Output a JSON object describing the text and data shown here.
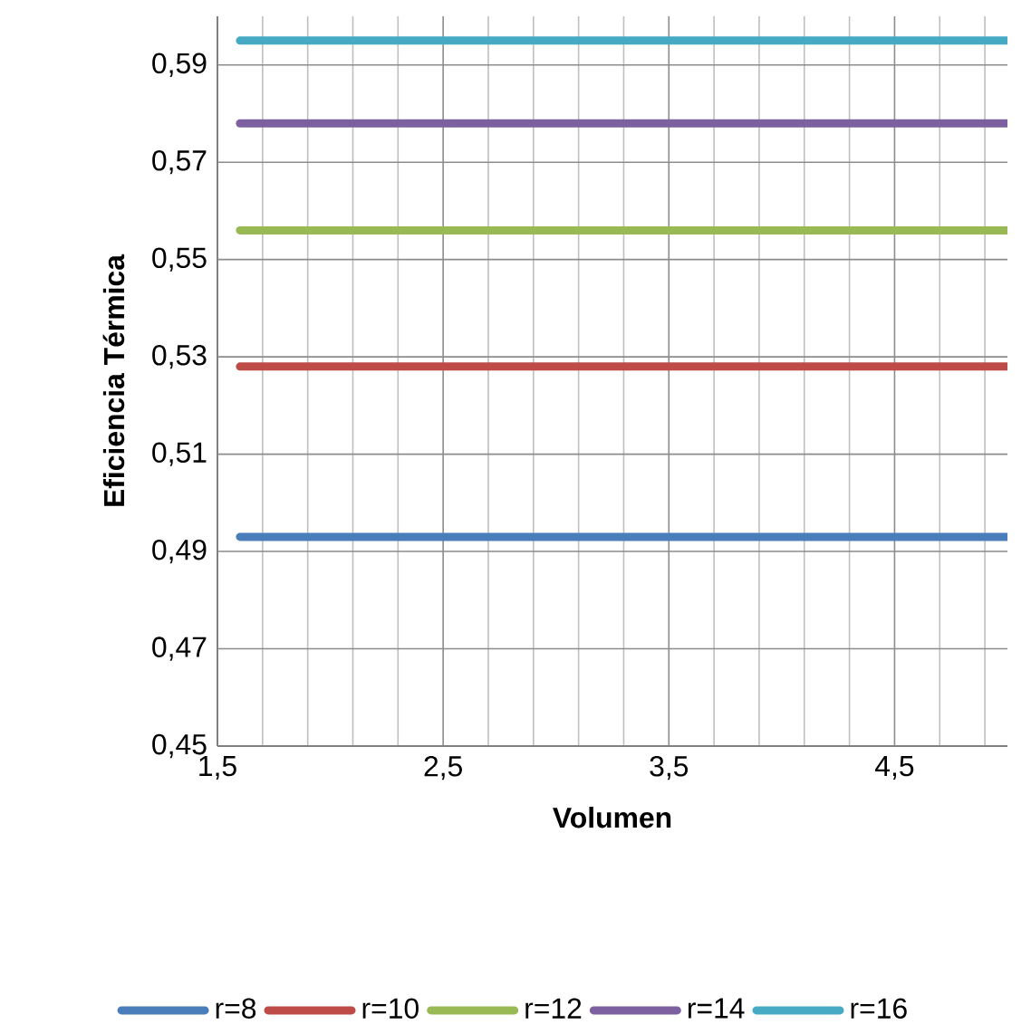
{
  "chart_data": {
    "type": "line",
    "xlabel": "Volumen",
    "ylabel": "Eficiencia Térmica",
    "xlim": [
      1.5,
      5.0
    ],
    "ylim": [
      0.45,
      0.6
    ],
    "xticks": [
      {
        "value": 1.5,
        "label": "1,5"
      },
      {
        "value": 1.7,
        "label": null
      },
      {
        "value": 1.9,
        "label": null
      },
      {
        "value": 2.1,
        "label": null
      },
      {
        "value": 2.3,
        "label": null
      },
      {
        "value": 2.5,
        "label": "2,5"
      },
      {
        "value": 2.7,
        "label": null
      },
      {
        "value": 2.9,
        "label": null
      },
      {
        "value": 3.1,
        "label": null
      },
      {
        "value": 3.3,
        "label": null
      },
      {
        "value": 3.5,
        "label": "3,5"
      },
      {
        "value": 3.7,
        "label": null
      },
      {
        "value": 3.9,
        "label": null
      },
      {
        "value": 4.1,
        "label": null
      },
      {
        "value": 4.3,
        "label": null
      },
      {
        "value": 4.5,
        "label": "4,5"
      },
      {
        "value": 4.7,
        "label": null
      },
      {
        "value": 4.9,
        "label": null
      }
    ],
    "yticks": [
      {
        "value": 0.45,
        "label": "0,45"
      },
      {
        "value": 0.47,
        "label": "0,47"
      },
      {
        "value": 0.49,
        "label": "0,49"
      },
      {
        "value": 0.51,
        "label": "0,51"
      },
      {
        "value": 0.53,
        "label": "0,53"
      },
      {
        "value": 0.55,
        "label": "0,55"
      },
      {
        "value": 0.57,
        "label": "0,57"
      },
      {
        "value": 0.59,
        "label": "0,59"
      }
    ],
    "x": [
      1.6,
      5.0
    ],
    "series": [
      {
        "name": "r=8",
        "color": "#4a7ebb",
        "values": [
          0.493,
          0.493
        ]
      },
      {
        "name": "r=10",
        "color": "#be4b48",
        "values": [
          0.528,
          0.528
        ]
      },
      {
        "name": "r=12",
        "color": "#98b954",
        "values": [
          0.556,
          0.556
        ]
      },
      {
        "name": "r=14",
        "color": "#7d60a0",
        "values": [
          0.578,
          0.578
        ]
      },
      {
        "name": "r=16",
        "color": "#46aac5",
        "values": [
          0.595,
          0.595
        ]
      }
    ],
    "grid": true,
    "legend": "bottom",
    "marker": "none",
    "line_style": "solid"
  }
}
